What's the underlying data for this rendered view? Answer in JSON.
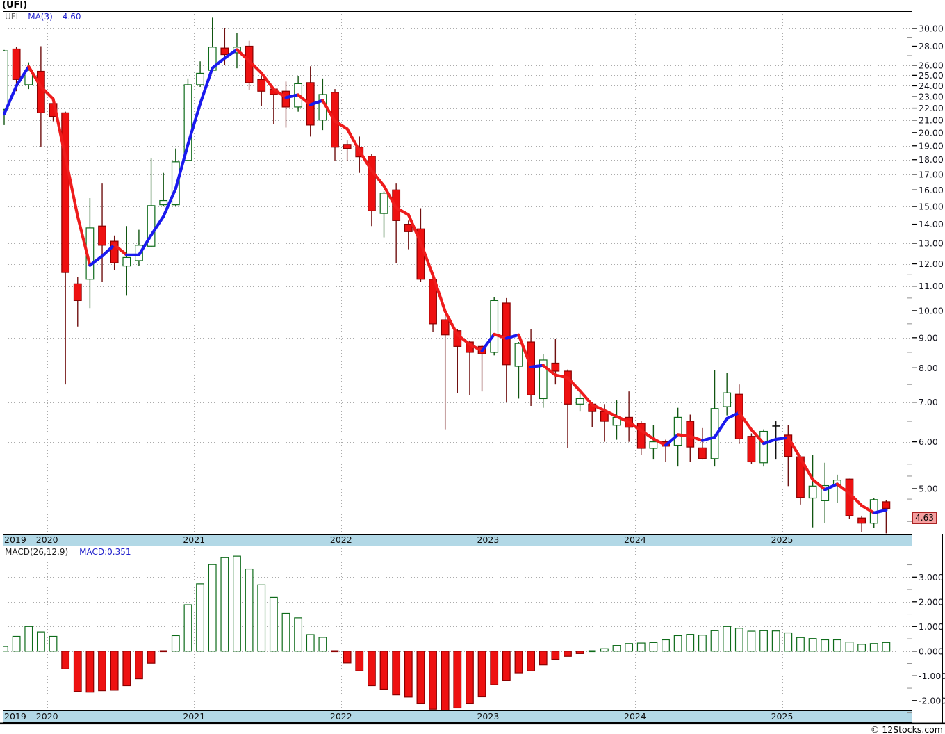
{
  "title": "(UFI)",
  "watermark": "© 12Stocks.com",
  "price_panel": {
    "legend": {
      "symbol": "UFI",
      "ma_label": "MA(3)",
      "ma_value": "4.60"
    },
    "last_price_label": "4.63",
    "tick_labels": [
      "30.00",
      "28.00",
      "26.00",
      "25.00",
      "24.00",
      "23.00",
      "22.00",
      "21.00",
      "20.00",
      "19.00",
      "18.00",
      "17.00",
      "16.00",
      "15.00",
      "14.00",
      "13.00",
      "12.00",
      "11.00",
      "10.00",
      "9.00",
      "8.00",
      "7.00",
      "6.00",
      "5.00"
    ],
    "tick_values": [
      30,
      28,
      26,
      25,
      24,
      23,
      22,
      21,
      20,
      19,
      18,
      17,
      16,
      15,
      14,
      13,
      12,
      11,
      10,
      9,
      8,
      7,
      6,
      5
    ],
    "minor_tick_values": [
      29,
      27,
      11.5,
      10.5,
      9.5,
      8.5,
      7.5,
      6.5,
      5.5,
      5.25,
      4.8,
      4.4
    ]
  },
  "macd_panel": {
    "legend_label": "MACD(26,12,9)",
    "legend_value": "MACD:0.351",
    "tick_labels": [
      "3.000",
      "2.000",
      "1.000",
      "0.000",
      "-1.000",
      "-2.000"
    ],
    "tick_values": [
      3,
      2,
      1,
      0,
      -1,
      -2
    ],
    "minor_tick_values": [
      3.5,
      2.5,
      1.5,
      0.5,
      -0.5,
      -1.5,
      -2.5
    ]
  },
  "x_axis": {
    "years": [
      "2019",
      "2020",
      "2021",
      "2022",
      "2023",
      "2024",
      "2025"
    ]
  },
  "colors": {
    "up_stroke": "#0e6b1a",
    "up_fill": "#ffffff",
    "down_fill": "#ee1111",
    "down_stroke": "#8b0000",
    "down_wick": "#701010",
    "up_wick": "#115511",
    "doji": "#111111",
    "ma_up": "#1a1aee",
    "ma_down": "#ee1c1c",
    "band": "#b2d8e6",
    "grid": "#ababab",
    "badge_fill": "#f5a0a0",
    "badge_border": "#aa2222",
    "legend_blue": "#2222cc"
  },
  "chart_data": {
    "type": "candlestick",
    "symbol": "UFI",
    "frequency": "monthly",
    "title": "(UFI)",
    "x_range": [
      "2019-09",
      "2025-09"
    ],
    "y_axis": {
      "type": "log",
      "range_labeled": [
        5,
        30
      ],
      "last_price": 4.63
    },
    "overlays": [
      {
        "name": "MA(3)",
        "current": 4.6,
        "style": "blue when rising, red when falling"
      }
    ],
    "indicator_panel": {
      "name": "MACD(26,12,9)",
      "current": 0.351,
      "y_range_labeled": [
        -2,
        3
      ]
    },
    "legend_position": "top-left inside plot",
    "grid": "dotted horizontal at price ticks, dotted vertical at year starts",
    "candles_format": [
      "month",
      "open",
      "high",
      "low",
      "close"
    ],
    "candles": [
      [
        "2019-09",
        21.9,
        27.6,
        20.6,
        27.5
      ],
      [
        "2019-10",
        27.7,
        27.9,
        23.5,
        24.6
      ],
      [
        "2019-11",
        24.1,
        26.3,
        23.7,
        25.5
      ],
      [
        "2019-12",
        25.4,
        28.0,
        18.9,
        21.6
      ],
      [
        "2020-01",
        22.4,
        22.6,
        20.9,
        21.3
      ],
      [
        "2020-02",
        21.6,
        21.7,
        7.5,
        11.6
      ],
      [
        "2020-03",
        11.1,
        11.4,
        9.4,
        10.4
      ],
      [
        "2020-04",
        11.3,
        15.5,
        10.1,
        13.8
      ],
      [
        "2020-05",
        13.9,
        16.4,
        11.2,
        12.9
      ],
      [
        "2020-06",
        13.1,
        13.4,
        11.7,
        12.05
      ],
      [
        "2020-07",
        11.9,
        13.9,
        10.6,
        12.3
      ],
      [
        "2020-08",
        12.15,
        13.7,
        11.9,
        12.9
      ],
      [
        "2020-09",
        12.85,
        18.1,
        12.8,
        15.05
      ],
      [
        "2020-10",
        15.1,
        17.1,
        15.0,
        15.35
      ],
      [
        "2020-11",
        15.1,
        18.8,
        15.0,
        17.85
      ],
      [
        "2020-12",
        17.95,
        24.7,
        17.9,
        24.1
      ],
      [
        "2021-01",
        24.1,
        26.4,
        23.9,
        25.2
      ],
      [
        "2021-02",
        25.5,
        31.3,
        25.4,
        27.9
      ],
      [
        "2021-03",
        27.8,
        30.0,
        26.0,
        27.1
      ],
      [
        "2021-04",
        27.3,
        29.5,
        25.7,
        27.9
      ],
      [
        "2021-05",
        28.0,
        28.6,
        23.6,
        24.3
      ],
      [
        "2021-06",
        24.6,
        24.9,
        22.2,
        23.5
      ],
      [
        "2021-07",
        23.7,
        23.9,
        20.7,
        23.2
      ],
      [
        "2021-08",
        23.5,
        24.4,
        20.4,
        22.1
      ],
      [
        "2021-09",
        22.1,
        24.9,
        21.7,
        24.2
      ],
      [
        "2021-10",
        24.3,
        25.9,
        19.7,
        20.6
      ],
      [
        "2021-11",
        21.0,
        24.7,
        20.2,
        23.2
      ],
      [
        "2021-12",
        23.4,
        23.7,
        17.9,
        18.9
      ],
      [
        "2022-01",
        19.1,
        19.4,
        17.9,
        18.8
      ],
      [
        "2022-02",
        18.9,
        19.7,
        17.1,
        18.2
      ],
      [
        "2022-03",
        18.25,
        18.4,
        13.9,
        14.75
      ],
      [
        "2022-04",
        14.6,
        15.9,
        13.3,
        15.8
      ],
      [
        "2022-05",
        16.0,
        16.4,
        12.05,
        14.2
      ],
      [
        "2022-06",
        14.0,
        14.2,
        12.7,
        13.6
      ],
      [
        "2022-07",
        13.75,
        14.9,
        11.2,
        11.3
      ],
      [
        "2022-08",
        11.3,
        11.4,
        9.2,
        9.5
      ],
      [
        "2022-09",
        9.65,
        9.8,
        6.3,
        9.1
      ],
      [
        "2022-10",
        9.25,
        9.3,
        7.25,
        8.7
      ],
      [
        "2022-11",
        8.85,
        8.9,
        7.2,
        8.5
      ],
      [
        "2022-12",
        8.7,
        8.75,
        7.3,
        8.45
      ],
      [
        "2023-01",
        8.5,
        10.55,
        8.4,
        10.4
      ],
      [
        "2023-02",
        10.3,
        10.5,
        7.0,
        8.1
      ],
      [
        "2023-03",
        8.05,
        8.85,
        7.1,
        8.8
      ],
      [
        "2023-04",
        8.85,
        9.3,
        6.9,
        7.2
      ],
      [
        "2023-05",
        7.1,
        8.45,
        6.85,
        8.25
      ],
      [
        "2023-06",
        8.15,
        8.95,
        7.5,
        7.9
      ],
      [
        "2023-07",
        7.9,
        7.95,
        5.85,
        6.95
      ],
      [
        "2023-08",
        6.95,
        7.25,
        6.75,
        7.1
      ],
      [
        "2023-09",
        6.95,
        7.0,
        6.35,
        6.75
      ],
      [
        "2023-10",
        6.75,
        6.95,
        6.0,
        6.5
      ],
      [
        "2023-11",
        6.4,
        7.05,
        6.05,
        6.6
      ],
      [
        "2023-12",
        6.6,
        7.3,
        6.0,
        6.35
      ],
      [
        "2024-01",
        6.45,
        6.5,
        5.7,
        5.85
      ],
      [
        "2024-02",
        5.85,
        6.4,
        5.6,
        6.0
      ],
      [
        "2024-03",
        6.0,
        6.05,
        5.55,
        5.9
      ],
      [
        "2024-04",
        5.92,
        6.85,
        5.45,
        6.6
      ],
      [
        "2024-05",
        6.5,
        6.67,
        5.55,
        5.88
      ],
      [
        "2024-06",
        5.86,
        6.33,
        5.6,
        5.62
      ],
      [
        "2024-07",
        5.62,
        7.92,
        5.45,
        6.83
      ],
      [
        "2024-08",
        6.88,
        7.85,
        6.65,
        7.26
      ],
      [
        "2024-09",
        7.22,
        7.5,
        5.95,
        6.07
      ],
      [
        "2024-10",
        6.13,
        6.2,
        5.5,
        5.55
      ],
      [
        "2024-11",
        5.53,
        6.3,
        5.45,
        6.25
      ],
      [
        "2024-12",
        6.38,
        6.5,
        5.6,
        6.38
      ],
      [
        "2025-01",
        6.16,
        6.4,
        5.05,
        5.67
      ],
      [
        "2025-02",
        5.66,
        5.7,
        4.7,
        4.83
      ],
      [
        "2025-03",
        4.82,
        5.7,
        4.3,
        5.05
      ],
      [
        "2025-04",
        4.77,
        5.53,
        4.37,
        5.06
      ],
      [
        "2025-05",
        5.06,
        5.28,
        4.73,
        5.17
      ],
      [
        "2025-06",
        5.19,
        5.2,
        4.45,
        4.5
      ],
      [
        "2025-07",
        4.46,
        4.5,
        4.22,
        4.37
      ],
      [
        "2025-08",
        4.37,
        4.82,
        4.29,
        4.79
      ],
      [
        "2025-09",
        4.75,
        4.78,
        4.2,
        4.63
      ]
    ],
    "ma3": [
      21.5,
      24.0,
      25.87,
      23.9,
      22.8,
      18.17,
      14.43,
      11.93,
      12.37,
      12.92,
      12.42,
      12.42,
      13.42,
      14.43,
      16.08,
      19.1,
      22.38,
      25.73,
      26.73,
      27.63,
      26.43,
      25.23,
      23.67,
      22.93,
      23.17,
      22.3,
      22.67,
      20.9,
      20.3,
      18.63,
      17.25,
      16.25,
      14.92,
      14.53,
      13.03,
      11.47,
      9.97,
      9.1,
      8.77,
      8.55,
      9.12,
      8.98,
      9.1,
      8.03,
      8.08,
      7.78,
      7.7,
      7.32,
      6.93,
      6.78,
      6.62,
      6.48,
      6.27,
      6.07,
      5.92,
      6.17,
      6.13,
      6.03,
      6.11,
      6.57,
      6.72,
      6.29,
      5.96,
      6.06,
      6.1,
      5.63,
      5.18,
      4.98,
      5.09,
      4.91,
      4.68,
      4.55,
      4.6
    ],
    "macd_histogram": [
      0.19,
      0.6,
      1.0,
      0.78,
      0.6,
      -0.72,
      -1.63,
      -1.66,
      -1.6,
      -1.58,
      -1.4,
      -1.12,
      -0.49,
      -0.02,
      0.63,
      1.88,
      2.73,
      3.51,
      3.79,
      3.85,
      3.33,
      2.69,
      2.18,
      1.53,
      1.35,
      0.67,
      0.56,
      -0.03,
      -0.48,
      -0.8,
      -1.4,
      -1.54,
      -1.77,
      -1.86,
      -2.13,
      -2.35,
      -2.39,
      -2.3,
      -2.13,
      -1.85,
      -1.36,
      -1.2,
      -0.88,
      -0.8,
      -0.56,
      -0.33,
      -0.21,
      -0.1,
      0.02,
      0.1,
      0.23,
      0.31,
      0.33,
      0.35,
      0.46,
      0.63,
      0.68,
      0.65,
      0.83,
      1.0,
      0.93,
      0.81,
      0.83,
      0.82,
      0.74,
      0.55,
      0.51,
      0.46,
      0.46,
      0.37,
      0.28,
      0.31,
      0.351
    ]
  }
}
